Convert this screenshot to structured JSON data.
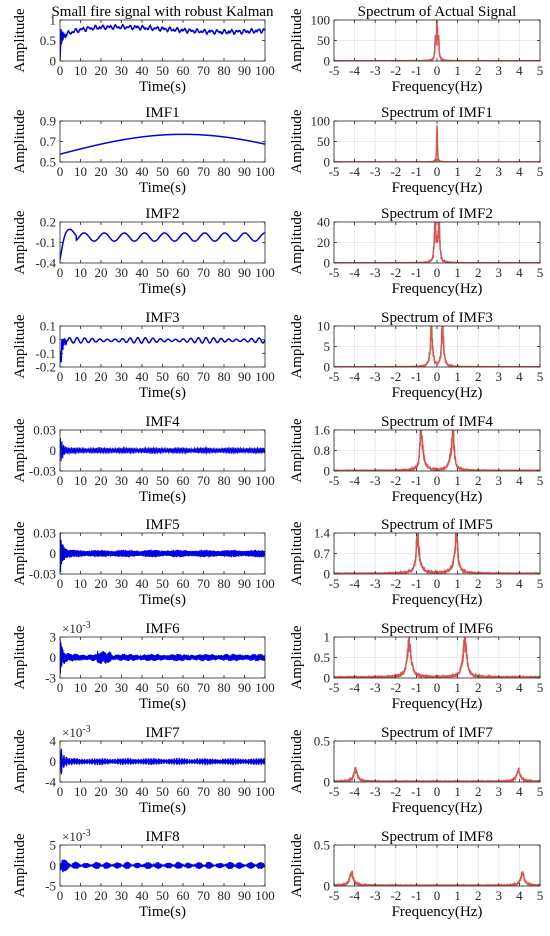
{
  "colors": {
    "time_trace": "#0000e0",
    "spectrum_trace": "#d9544f",
    "axis": "#262626",
    "grid": "#e4e4e4"
  },
  "chart_data": [
    {
      "type": "line",
      "title": "Small fire signal with robust Kalman",
      "xlabel": "Time(s)",
      "ylabel": "Amplitude",
      "xlim": [
        0,
        100
      ],
      "ylim": [
        0,
        1
      ],
      "xticks": [
        "0",
        "10",
        "20",
        "30",
        "40",
        "50",
        "60",
        "70",
        "80",
        "90",
        "100"
      ],
      "yticks": [
        "0",
        "0.5",
        "1"
      ],
      "exponent": "",
      "grid": false
    },
    {
      "type": "line",
      "title": "Spectrum of Actual Signal",
      "xlabel": "Frequency(Hz)",
      "ylabel": "",
      "xlim": [
        -5,
        5
      ],
      "ylim": [
        0,
        100
      ],
      "xticks": [
        "-5",
        "-4",
        "-3",
        "-2",
        "-1",
        "0",
        "1",
        "2",
        "3",
        "4",
        "5"
      ],
      "yticks": [
        "0",
        "50",
        "100"
      ],
      "exponent": "",
      "grid": true
    },
    {
      "type": "line",
      "title": "IMF1",
      "xlabel": "Time(s)",
      "ylabel": "Amplitude",
      "xlim": [
        0,
        100
      ],
      "ylim": [
        0.5,
        0.9
      ],
      "xticks": [
        "0",
        "10",
        "20",
        "30",
        "40",
        "50",
        "60",
        "70",
        "80",
        "90",
        "100"
      ],
      "yticks": [
        "0.5",
        "0.7",
        "0.9"
      ],
      "exponent": "",
      "grid": false
    },
    {
      "type": "line",
      "title": "Spectrum of IMF1",
      "xlabel": "Frequency(Hz)",
      "ylabel": "",
      "xlim": [
        -5,
        5
      ],
      "ylim": [
        0,
        100
      ],
      "xticks": [
        "-5",
        "-4",
        "-3",
        "-2",
        "-1",
        "0",
        "1",
        "2",
        "3",
        "4",
        "5"
      ],
      "yticks": [
        "0",
        "50",
        "100"
      ],
      "exponent": "",
      "grid": true
    },
    {
      "type": "line",
      "title": "IMF2",
      "xlabel": "Time(s)",
      "ylabel": "Amplitude",
      "xlim": [
        0,
        100
      ],
      "ylim": [
        -0.4,
        0.2
      ],
      "xticks": [
        "0",
        "10",
        "20",
        "30",
        "40",
        "50",
        "60",
        "70",
        "80",
        "90",
        "100"
      ],
      "yticks": [
        "-0.4",
        "-0.1",
        "0.2"
      ],
      "exponent": "",
      "grid": false
    },
    {
      "type": "line",
      "title": "Spectrum of IMF2",
      "xlabel": "Frequency(Hz)",
      "ylabel": "",
      "xlim": [
        -5,
        5
      ],
      "ylim": [
        0,
        40
      ],
      "xticks": [
        "-5",
        "-4",
        "-3",
        "-2",
        "-1",
        "0",
        "1",
        "2",
        "3",
        "4",
        "5"
      ],
      "yticks": [
        "0",
        "20",
        "40"
      ],
      "exponent": "",
      "grid": true
    },
    {
      "type": "line",
      "title": "IMF3",
      "xlabel": "Time(s)",
      "ylabel": "Amplitude",
      "xlim": [
        0,
        100
      ],
      "ylim": [
        -0.2,
        0.1
      ],
      "xticks": [
        "0",
        "10",
        "20",
        "30",
        "40",
        "50",
        "60",
        "70",
        "80",
        "90",
        "100"
      ],
      "yticks": [
        "-0.2",
        "-0.1",
        "0",
        "0.1"
      ],
      "exponent": "",
      "grid": false
    },
    {
      "type": "line",
      "title": "Spectrum of IMF3",
      "xlabel": "Frequency(Hz)",
      "ylabel": "",
      "xlim": [
        -5,
        5
      ],
      "ylim": [
        0,
        10
      ],
      "xticks": [
        "-5",
        "-4",
        "-3",
        "-2",
        "-1",
        "0",
        "1",
        "2",
        "3",
        "4",
        "5"
      ],
      "yticks": [
        "0",
        "5",
        "10"
      ],
      "exponent": "",
      "grid": true
    },
    {
      "type": "line",
      "title": "IMF4",
      "xlabel": "Time(s)",
      "ylabel": "Amplitude",
      "xlim": [
        0,
        100
      ],
      "ylim": [
        -0.03,
        0.03
      ],
      "xticks": [
        "0",
        "10",
        "20",
        "30",
        "40",
        "50",
        "60",
        "70",
        "80",
        "90",
        "100"
      ],
      "yticks": [
        "-0.03",
        "0",
        "0.03"
      ],
      "exponent": "",
      "grid": false
    },
    {
      "type": "line",
      "title": "Spectrum of IMF4",
      "xlabel": "Frequency(Hz)",
      "ylabel": "",
      "xlim": [
        -5,
        5
      ],
      "ylim": [
        0,
        1.6
      ],
      "xticks": [
        "-5",
        "-4",
        "-3",
        "-2",
        "-1",
        "0",
        "1",
        "2",
        "3",
        "4",
        "5"
      ],
      "yticks": [
        "0",
        "0.8",
        "1.6"
      ],
      "exponent": "",
      "grid": true
    },
    {
      "type": "line",
      "title": "IMF5",
      "xlabel": "Time(s)",
      "ylabel": "Amplitude",
      "xlim": [
        0,
        100
      ],
      "ylim": [
        -0.03,
        0.03
      ],
      "xticks": [
        "0",
        "10",
        "20",
        "30",
        "40",
        "50",
        "60",
        "70",
        "80",
        "90",
        "100"
      ],
      "yticks": [
        "-0.03",
        "0",
        "0.03"
      ],
      "exponent": "",
      "grid": false
    },
    {
      "type": "line",
      "title": "Spectrum of IMF5",
      "xlabel": "Frequency(Hz)",
      "ylabel": "",
      "xlim": [
        -5,
        5
      ],
      "ylim": [
        0,
        1.4
      ],
      "xticks": [
        "-5",
        "-4",
        "-3",
        "-2",
        "-1",
        "0",
        "1",
        "2",
        "3",
        "4",
        "5"
      ],
      "yticks": [
        "0",
        "0.7",
        "1.4"
      ],
      "exponent": "",
      "grid": true
    },
    {
      "type": "line",
      "title": "IMF6",
      "xlabel": "Time(s)",
      "ylabel": "Amplitude",
      "xlim": [
        0,
        100
      ],
      "ylim": [
        -3,
        3
      ],
      "xticks": [
        "0",
        "10",
        "20",
        "30",
        "40",
        "50",
        "60",
        "70",
        "80",
        "90",
        "100"
      ],
      "yticks": [
        "-3",
        "0",
        "3"
      ],
      "exponent": "×10",
      "exponent_power": "-3",
      "grid": false
    },
    {
      "type": "line",
      "title": "Spectrum of IMF6",
      "xlabel": "Frequency(Hz)",
      "ylabel": "",
      "xlim": [
        -5,
        5
      ],
      "ylim": [
        0,
        1
      ],
      "xticks": [
        "-5",
        "-4",
        "-3",
        "-2",
        "-1",
        "0",
        "1",
        "2",
        "3",
        "4",
        "5"
      ],
      "yticks": [
        "0",
        "0.5",
        "1"
      ],
      "exponent": "",
      "grid": true
    },
    {
      "type": "line",
      "title": "IMF7",
      "xlabel": "Time(s)",
      "ylabel": "Amplitude",
      "xlim": [
        0,
        100
      ],
      "ylim": [
        -4,
        4
      ],
      "xticks": [
        "0",
        "10",
        "20",
        "30",
        "40",
        "50",
        "60",
        "70",
        "80",
        "90",
        "100"
      ],
      "yticks": [
        "-4",
        "0",
        "4"
      ],
      "exponent": "×10",
      "exponent_power": "-3",
      "grid": false
    },
    {
      "type": "line",
      "title": "Spectrum of IMF7",
      "xlabel": "Frequency(Hz)",
      "ylabel": "",
      "xlim": [
        -5,
        5
      ],
      "ylim": [
        0,
        0.5
      ],
      "xticks": [
        "-5",
        "-4",
        "-3",
        "-2",
        "-1",
        "0",
        "1",
        "2",
        "3",
        "4",
        "5"
      ],
      "yticks": [
        "0",
        "0.5"
      ],
      "exponent": "",
      "grid": true
    },
    {
      "type": "line",
      "title": "IMF8",
      "xlabel": "Time(s)",
      "ylabel": "Amplitude",
      "xlim": [
        0,
        100
      ],
      "ylim": [
        -5,
        5
      ],
      "xticks": [
        "0",
        "10",
        "20",
        "30",
        "40",
        "50",
        "60",
        "70",
        "80",
        "90",
        "100"
      ],
      "yticks": [
        "-5",
        "0",
        "5"
      ],
      "exponent": "×10",
      "exponent_power": "-3",
      "grid": false
    },
    {
      "type": "line",
      "title": "Spectrum of IMF8",
      "xlabel": "Frequency(Hz)",
      "ylabel": "",
      "xlim": [
        -5,
        5
      ],
      "ylim": [
        0,
        0.5
      ],
      "xticks": [
        "-5",
        "-4",
        "-3",
        "-2",
        "-1",
        "0",
        "1",
        "2",
        "3",
        "4",
        "5"
      ],
      "yticks": [
        "0",
        "0.5"
      ],
      "exponent": "",
      "grid": true
    }
  ]
}
